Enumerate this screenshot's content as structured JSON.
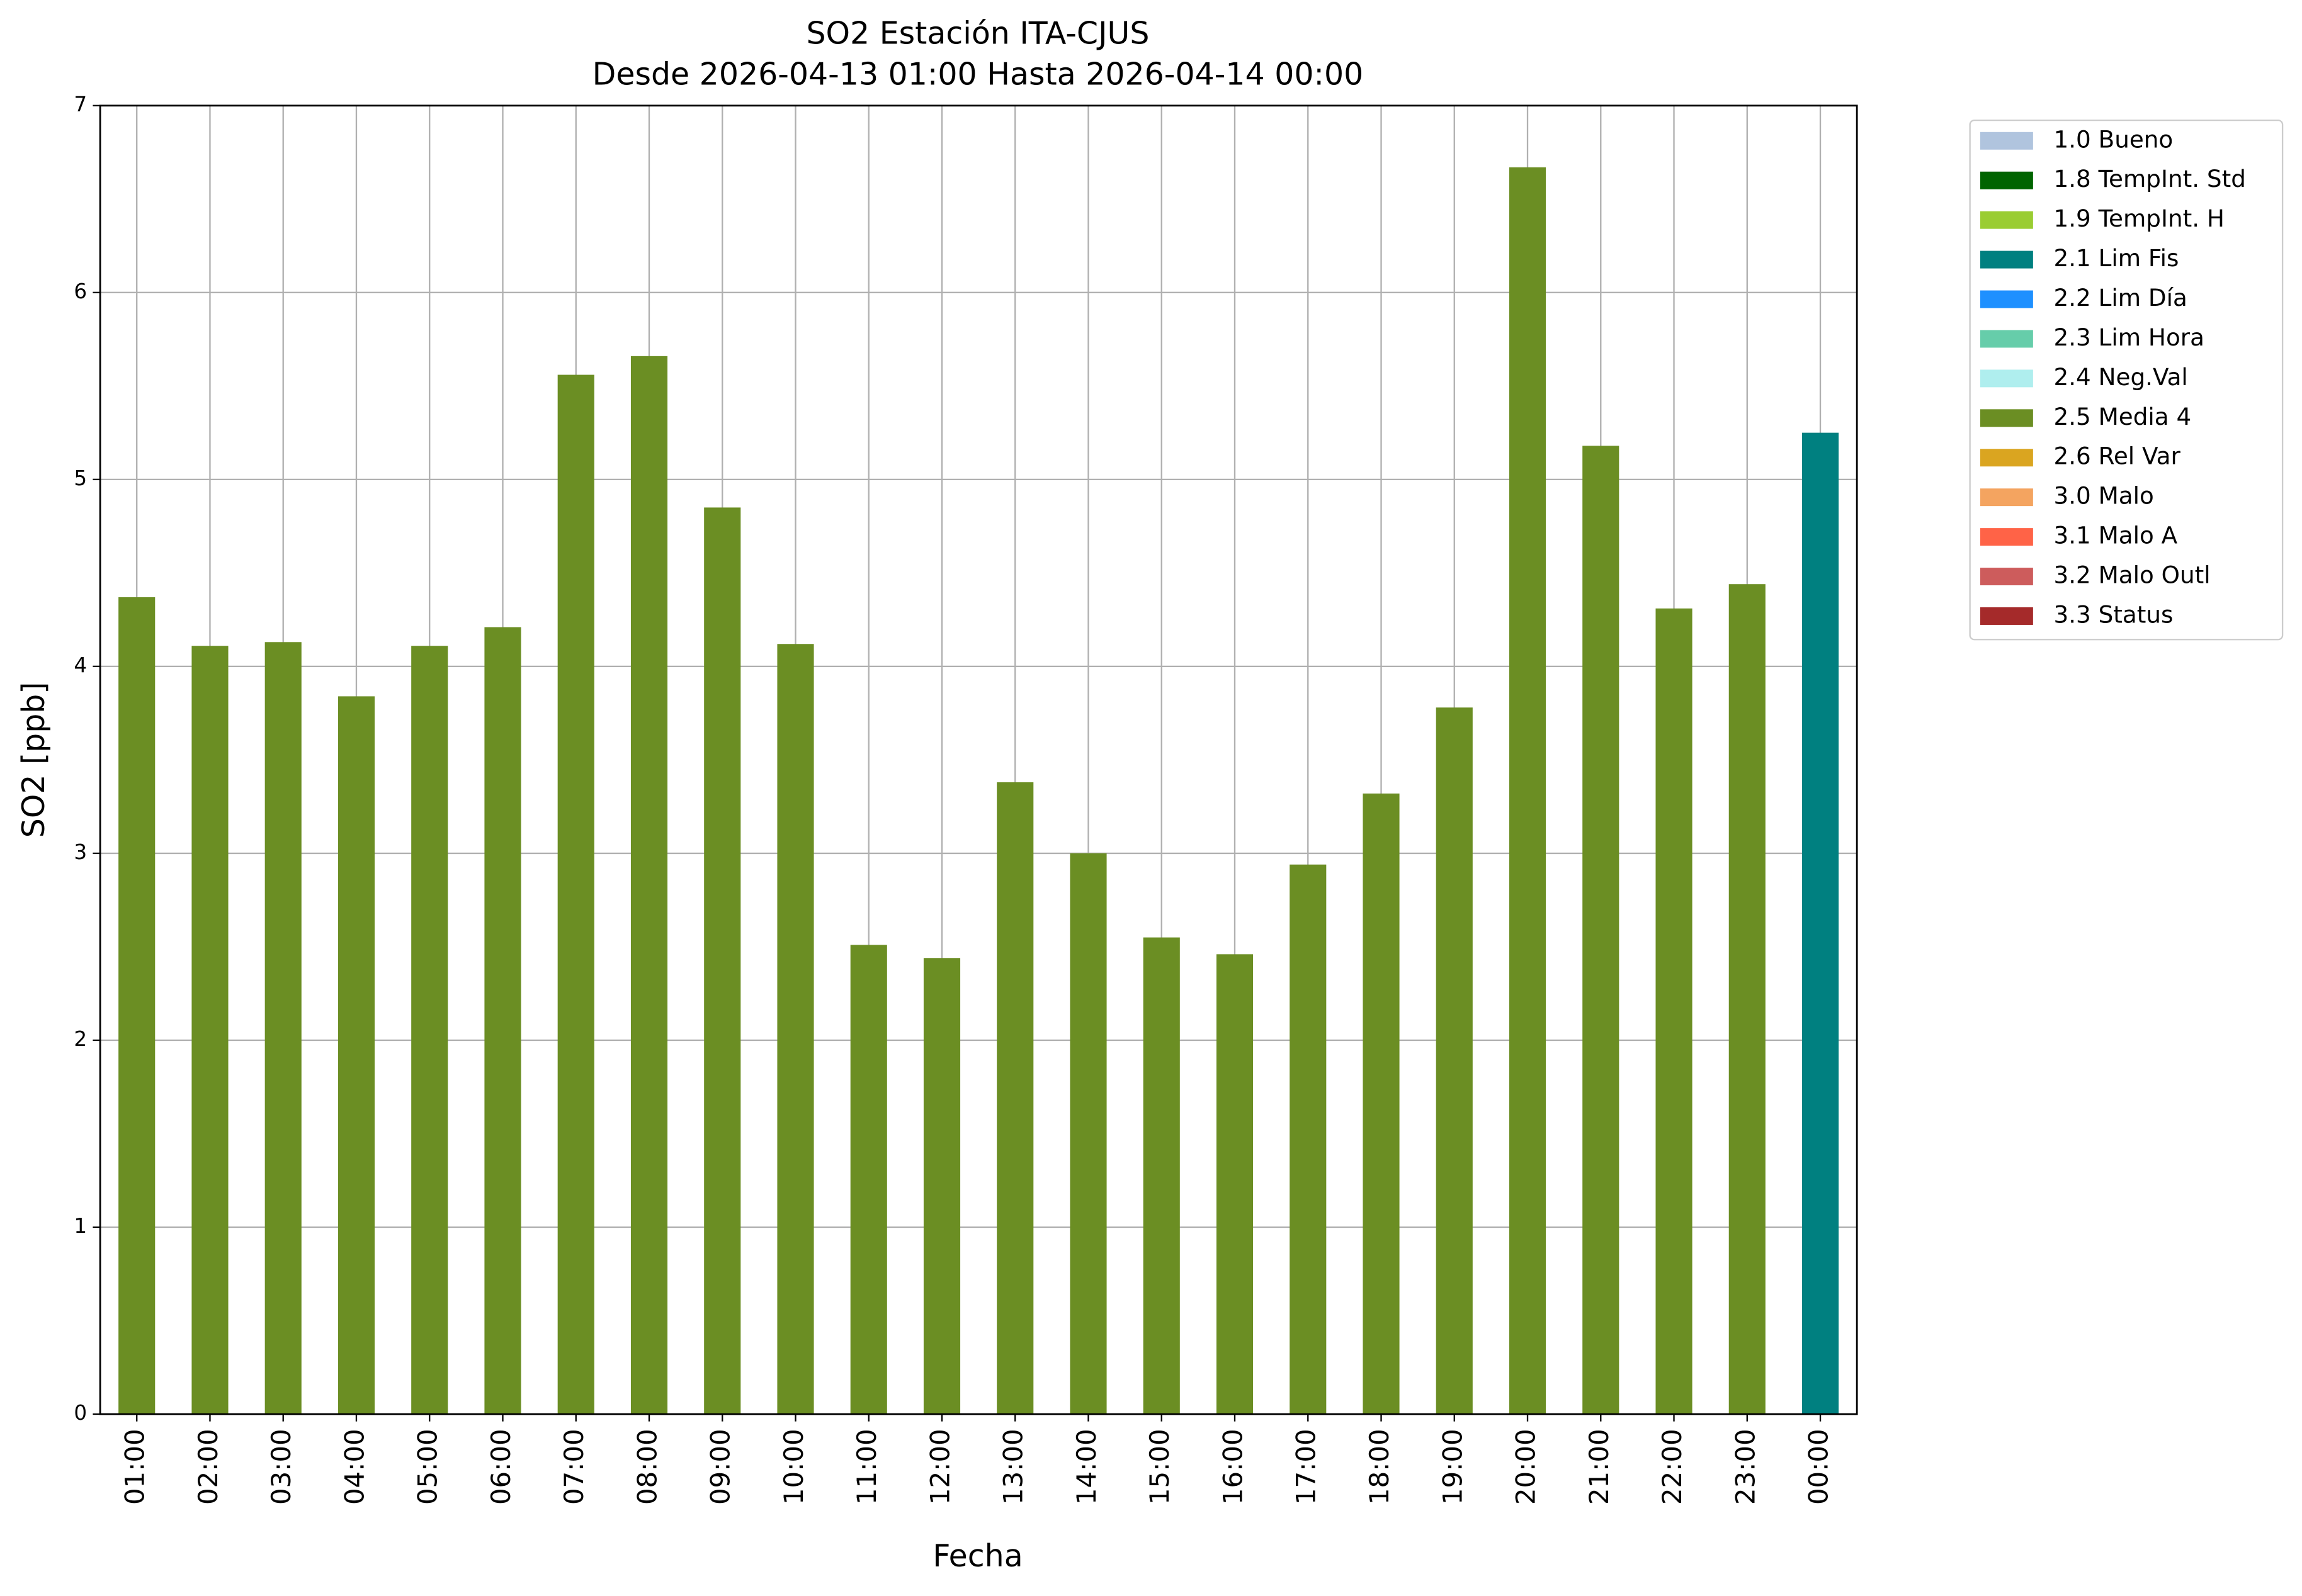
{
  "chart_data": {
    "type": "stacked_bar",
    "title": "SO2 Estación ITA-CJUS",
    "subtitle": "Desde 2026-04-13 01:00 Hasta 2026-04-14 00:00",
    "x_label": "Fecha",
    "y_label": "SO2 [ppb]",
    "categories": [
      "01:00",
      "02:00",
      "03:00",
      "04:00",
      "05:00",
      "06:00",
      "07:00",
      "08:00",
      "09:00",
      "10:00",
      "11:00",
      "12:00",
      "13:00",
      "14:00",
      "15:00",
      "16:00",
      "17:00",
      "18:00",
      "19:00",
      "20:00",
      "21:00",
      "22:00",
      "23:00",
      "00:00"
    ],
    "ylim": [
      0,
      7
    ],
    "yticks": [
      0,
      1,
      2,
      3,
      4,
      5,
      6,
      7
    ],
    "grid": true,
    "legend": "outside-upper-right",
    "series": [
      {
        "name": "1.0 Bueno",
        "color": "#b0c4de",
        "values": [
          null,
          null,
          null,
          null,
          null,
          null,
          null,
          null,
          null,
          null,
          null,
          null,
          null,
          null,
          null,
          null,
          null,
          null,
          null,
          null,
          null,
          null,
          null,
          null
        ]
      },
      {
        "name": "1.8 TempInt. Std",
        "color": "#006400",
        "values": [
          null,
          null,
          null,
          null,
          null,
          null,
          null,
          null,
          null,
          null,
          null,
          null,
          null,
          null,
          null,
          null,
          null,
          null,
          null,
          null,
          null,
          null,
          null,
          null
        ]
      },
      {
        "name": "1.9 TempInt. H",
        "color": "#9acd32",
        "values": [
          null,
          null,
          null,
          null,
          null,
          null,
          null,
          null,
          null,
          null,
          null,
          null,
          null,
          null,
          null,
          null,
          null,
          null,
          null,
          null,
          null,
          null,
          null,
          null
        ]
      },
      {
        "name": "2.1 Lim Fis",
        "color": "#008080",
        "values": [
          null,
          null,
          null,
          null,
          null,
          null,
          null,
          null,
          null,
          null,
          null,
          null,
          null,
          null,
          null,
          null,
          null,
          null,
          null,
          null,
          null,
          null,
          null,
          5.25
        ]
      },
      {
        "name": "2.2 Lim Día",
        "color": "#1e90ff",
        "values": [
          null,
          null,
          null,
          null,
          null,
          null,
          null,
          null,
          null,
          null,
          null,
          null,
          null,
          null,
          null,
          null,
          null,
          null,
          null,
          null,
          null,
          null,
          null,
          null
        ]
      },
      {
        "name": "2.3 Lim Hora",
        "color": "#66cdaa",
        "values": [
          null,
          null,
          null,
          null,
          null,
          null,
          null,
          null,
          null,
          null,
          null,
          null,
          null,
          null,
          null,
          null,
          null,
          null,
          null,
          null,
          null,
          null,
          null,
          null
        ]
      },
      {
        "name": "2.4 Neg.Val",
        "color": "#afeeee",
        "values": [
          null,
          null,
          null,
          null,
          null,
          null,
          null,
          null,
          null,
          null,
          null,
          null,
          null,
          null,
          null,
          null,
          null,
          null,
          null,
          null,
          null,
          null,
          null,
          null
        ]
      },
      {
        "name": "2.5 Media 4",
        "color": "#6b8e23",
        "values": [
          4.37,
          4.11,
          4.13,
          3.84,
          4.11,
          4.21,
          5.56,
          5.66,
          4.85,
          4.12,
          2.51,
          2.44,
          3.38,
          3.0,
          2.55,
          2.46,
          2.94,
          3.32,
          3.78,
          6.67,
          5.18,
          4.31,
          4.44,
          null
        ]
      },
      {
        "name": "2.6 Rel Var",
        "color": "#daa520",
        "values": [
          null,
          null,
          null,
          null,
          null,
          null,
          null,
          null,
          null,
          null,
          null,
          null,
          null,
          null,
          null,
          null,
          null,
          null,
          null,
          null,
          null,
          null,
          null,
          null
        ]
      },
      {
        "name": "3.0 Malo",
        "color": "#f4a460",
        "values": [
          null,
          null,
          null,
          null,
          null,
          null,
          null,
          null,
          null,
          null,
          null,
          null,
          null,
          null,
          null,
          null,
          null,
          null,
          null,
          null,
          null,
          null,
          null,
          null
        ]
      },
      {
        "name": "3.1 Malo A",
        "color": "#ff6347",
        "values": [
          null,
          null,
          null,
          null,
          null,
          null,
          null,
          null,
          null,
          null,
          null,
          null,
          null,
          null,
          null,
          null,
          null,
          null,
          null,
          null,
          null,
          null,
          null,
          null
        ]
      },
      {
        "name": "3.2 Malo Outl",
        "color": "#cd5c5c",
        "values": [
          null,
          null,
          null,
          null,
          null,
          null,
          null,
          null,
          null,
          null,
          null,
          null,
          null,
          null,
          null,
          null,
          null,
          null,
          null,
          null,
          null,
          null,
          null,
          null
        ]
      },
      {
        "name": "3.3 Status",
        "color": "#a52a2a",
        "values": [
          null,
          null,
          null,
          null,
          null,
          null,
          null,
          null,
          null,
          null,
          null,
          null,
          null,
          null,
          null,
          null,
          null,
          null,
          null,
          null,
          null,
          null,
          null,
          null
        ]
      }
    ]
  }
}
